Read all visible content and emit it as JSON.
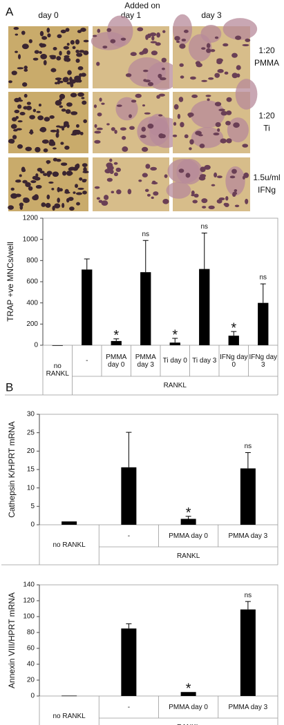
{
  "panel_a": {
    "label": "A",
    "header": "Added on",
    "columns": [
      "day 0",
      "day 1",
      "day 3"
    ],
    "rows": [
      {
        "dose": "1:20",
        "agent": "PMMA"
      },
      {
        "dose": "1:20",
        "agent": "Ti"
      },
      {
        "dose": "1.5u/ml",
        "agent": "IFNg"
      }
    ]
  },
  "panel_b_label": "B",
  "chart_data": [
    {
      "type": "bar",
      "y_label": "TRAP +ve MNCs/well",
      "categories": [
        "no RANKL",
        "-",
        "PMMA day 0",
        "PMMA day 3",
        "Ti day 0",
        "Ti day 3",
        "IFNg day 0",
        "IFNg day 3"
      ],
      "values": [
        0,
        715,
        40,
        690,
        25,
        720,
        90,
        400
      ],
      "errors": [
        0,
        100,
        20,
        300,
        40,
        340,
        40,
        180
      ],
      "annotations": [
        null,
        null,
        "*",
        "ns",
        "*",
        "ns",
        "*",
        "ns"
      ],
      "group_label": "RANKL",
      "color": "#000000",
      "ylim": [
        0,
        1200
      ],
      "yticks": [
        0,
        200,
        400,
        600,
        800,
        1000,
        1200
      ]
    },
    {
      "type": "bar",
      "y_label": "Cathepsin K/HPRT mRNA",
      "categories": [
        "no RANKL",
        "-",
        "PMMA day 0",
        "PMMA day 3"
      ],
      "values": [
        0.9,
        15.6,
        1.6,
        15.3
      ],
      "errors": [
        0,
        9.5,
        0.7,
        4.3
      ],
      "annotations": [
        null,
        null,
        "*",
        "ns"
      ],
      "group_label": "RANKL",
      "color": "#000000",
      "ylim": [
        0,
        30
      ],
      "yticks": [
        0,
        5,
        10,
        15,
        20,
        25,
        30
      ]
    },
    {
      "type": "bar",
      "y_label": "Annexin VIII/HPRT mRNA",
      "categories": [
        "no RANKL",
        "-",
        "PMMA day 0",
        "PMMA day 3"
      ],
      "values": [
        0.5,
        85,
        5,
        109
      ],
      "errors": [
        0,
        6,
        0,
        10
      ],
      "annotations": [
        null,
        null,
        "*",
        "ns"
      ],
      "group_label": "RANKL",
      "color": "#000000",
      "ylim": [
        0,
        140
      ],
      "yticks": [
        0,
        20,
        40,
        60,
        80,
        100,
        120,
        140
      ]
    }
  ]
}
